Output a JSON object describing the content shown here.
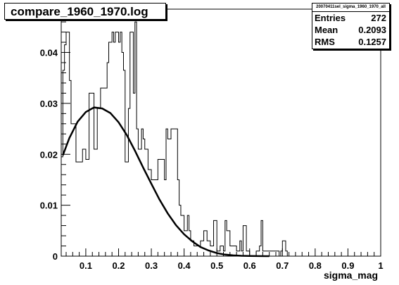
{
  "title": "compare_1960_1970.log",
  "stats": {
    "name": "20070411sel_sigma_1960_1970_all",
    "rows": [
      {
        "label": "Entries",
        "value": "272"
      },
      {
        "label": "Mean",
        "value": "0.2093"
      },
      {
        "label": "RMS",
        "value": "0.1257"
      }
    ]
  },
  "chart_data": {
    "type": "bar",
    "xlabel": "sigma_mag",
    "ylabel": "",
    "xlim": [
      0.025,
      1.0
    ],
    "ylim": [
      0,
      0.0485
    ],
    "xticks": [
      "0.1",
      "0.2",
      "0.3",
      "0.4",
      "0.5",
      "0.6",
      "0.7",
      "0.8",
      "0.9",
      "1"
    ],
    "yticks": [
      "0",
      "0.01",
      "0.02",
      "0.03",
      "0.04"
    ],
    "histogram": {
      "bin_edges": [
        0.025,
        0.03,
        0.035,
        0.04,
        0.05,
        0.055,
        0.07,
        0.09,
        0.1,
        0.11,
        0.125,
        0.135,
        0.145,
        0.165,
        0.17,
        0.18,
        0.185,
        0.19,
        0.2,
        0.205,
        0.21,
        0.215,
        0.22,
        0.23,
        0.235,
        0.245,
        0.25,
        0.255,
        0.26,
        0.27,
        0.275,
        0.28,
        0.29,
        0.3,
        0.32,
        0.34,
        0.345,
        0.35,
        0.36,
        0.38,
        0.385,
        0.39,
        0.4,
        0.41,
        0.415,
        0.42,
        0.43,
        0.45,
        0.46,
        0.47,
        0.48,
        0.49,
        0.5,
        0.51,
        0.52,
        0.525,
        0.53,
        0.54,
        0.56,
        0.57,
        0.575,
        0.58,
        0.59,
        0.6,
        0.62,
        0.63,
        0.635,
        0.64,
        0.69,
        0.695,
        0.7,
        0.71,
        0.715
      ],
      "values": [
        0.0195,
        0.0365,
        0.0415,
        0.044,
        0.0345,
        0.026,
        0.0185,
        0.021,
        0.019,
        0.032,
        0.021,
        0.029,
        0.033,
        0.038,
        0.042,
        0.044,
        0.042,
        0.044,
        0.042,
        0.044,
        0.04,
        0.0365,
        0.0185,
        0.029,
        0.044,
        0.032,
        0.046,
        0.025,
        0.021,
        0.025,
        0.023,
        0.021,
        0.017,
        0.015,
        0.019,
        0.015,
        0.025,
        0.023,
        0.025,
        0.015,
        0.01,
        0.008,
        0.005,
        0.008,
        0.005,
        0.003,
        0.002,
        0.003,
        0.005,
        0.003,
        0.002,
        0.007,
        0.001,
        0.002,
        0.001,
        0.007,
        0.005,
        0.002,
        0.001,
        0.003,
        0.001,
        0.006,
        0.001,
        0.0,
        0.001,
        0.002,
        0.007,
        0.001,
        0.0,
        0.001,
        0.003,
        0.001
      ]
    },
    "fit": {
      "x": [
        0.03,
        0.05,
        0.075,
        0.1,
        0.125,
        0.15,
        0.175,
        0.2,
        0.225,
        0.25,
        0.275,
        0.3,
        0.325,
        0.35,
        0.375,
        0.4,
        0.425,
        0.45,
        0.475,
        0.5,
        0.525,
        0.55,
        0.575,
        0.6,
        0.625,
        0.65,
        0.66
      ],
      "y": [
        0.0198,
        0.0232,
        0.0264,
        0.0283,
        0.0292,
        0.029,
        0.0281,
        0.0263,
        0.0238,
        0.0207,
        0.0174,
        0.0142,
        0.0111,
        0.0084,
        0.0061,
        0.0043,
        0.0029,
        0.0018,
        0.0011,
        0.0006,
        0.0003,
        0.00015,
        7e-05,
        3e-05,
        1e-05,
        5e-06,
        0.0
      ]
    },
    "grid": false,
    "legend": "none"
  }
}
